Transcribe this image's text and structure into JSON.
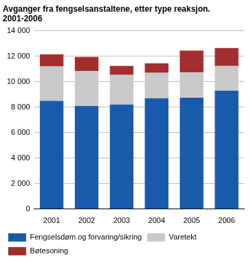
{
  "chart_data": {
    "type": "bar",
    "stacked": true,
    "title": [
      "Avganger fra fengselsanstaltene, etter type reaksjon.",
      "2001-2006"
    ],
    "categories": [
      "2001",
      "2002",
      "2003",
      "2004",
      "2005",
      "2006"
    ],
    "series": [
      {
        "name": "Fengselsdøm og forvaring/sikring",
        "color": "#1a5aab",
        "values": [
          8500,
          8100,
          8200,
          8700,
          8750,
          9300
        ]
      },
      {
        "name": "Varetekt",
        "color": "#c8c9cb",
        "values": [
          2700,
          2750,
          2350,
          2000,
          2000,
          1950
        ]
      },
      {
        "name": "Bøtesoning",
        "color": "#a32e2e",
        "values": [
          950,
          1100,
          700,
          750,
          1700,
          1400
        ]
      }
    ],
    "ylim": [
      0,
      14000
    ],
    "yticks": [
      0,
      {
        "value": 2000,
        "label": "2 000"
      },
      {
        "value": 4000,
        "label": "4 000"
      },
      {
        "value": 6000,
        "label": "6 000"
      },
      {
        "value": 8000,
        "label": "8 000"
      },
      {
        "value": 10000,
        "label": "10 000"
      },
      {
        "value": 12000,
        "label": "12 000"
      },
      {
        "value": 14000,
        "label": "14 000"
      }
    ],
    "grid": true,
    "legend": "bottom"
  }
}
